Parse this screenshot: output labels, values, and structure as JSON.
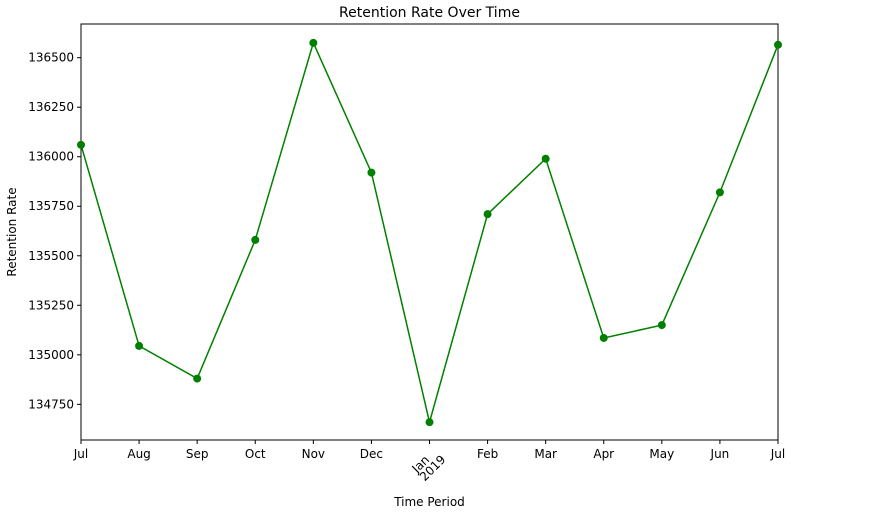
{
  "chart_data": {
    "type": "line",
    "title": "Retention Rate Over Time",
    "xlabel": "Time Period",
    "ylabel": "Retention Rate",
    "color": "#008000",
    "grid": false,
    "ylim": [
      134570,
      136670
    ],
    "yticks": [
      134750,
      135000,
      135250,
      135500,
      135750,
      136000,
      136250,
      136500
    ],
    "categories": [
      "Jul",
      "Aug",
      "Sep",
      "Oct",
      "Nov",
      "Dec",
      "Jan",
      "Feb",
      "Mar",
      "Apr",
      "May",
      "Jun",
      "Jul"
    ],
    "year_label": "2019",
    "year_label_index": 6,
    "series": [
      {
        "values": [
          136060,
          135045,
          134880,
          135580,
          136575,
          135920,
          134660,
          135710,
          135990,
          135085,
          135150,
          135820,
          136565
        ]
      }
    ]
  }
}
